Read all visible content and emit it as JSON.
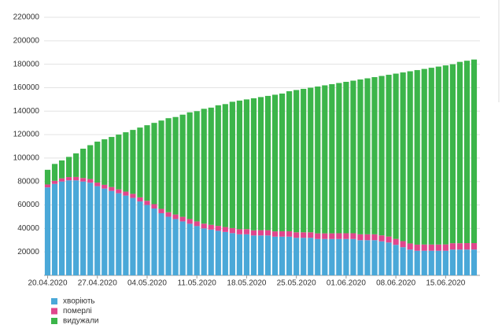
{
  "chart_data": {
    "type": "stacked_bar",
    "categories": [
      "20.04.2020",
      null,
      null,
      null,
      null,
      null,
      null,
      "27.04.2020",
      null,
      null,
      null,
      null,
      null,
      null,
      "04.05.2020",
      null,
      null,
      null,
      null,
      null,
      null,
      "11.05.2020",
      null,
      null,
      null,
      null,
      null,
      null,
      "18.05.2020",
      null,
      null,
      null,
      null,
      null,
      null,
      "25.05.2020",
      null,
      null,
      null,
      null,
      null,
      null,
      "01.06.2020",
      null,
      null,
      null,
      null,
      null,
      null,
      "08.06.2020",
      null,
      null,
      null,
      null,
      null,
      null,
      "15.06.2020",
      null,
      null,
      null,
      null
    ],
    "series": [
      {
        "name": "хворіють",
        "color": "#4aa8d8",
        "values": [
          75000,
          78000,
          80000,
          81000,
          81000,
          80000,
          79000,
          76000,
          74000,
          72000,
          70000,
          68000,
          66000,
          63000,
          60000,
          57000,
          53000,
          50000,
          48000,
          46000,
          44000,
          42000,
          40000,
          39000,
          38000,
          37000,
          36000,
          35000,
          35000,
          34000,
          34000,
          34000,
          33000,
          33000,
          33000,
          32000,
          32000,
          32000,
          31000,
          31000,
          31000,
          31000,
          31000,
          31000,
          30000,
          30000,
          30000,
          29000,
          28000,
          26000,
          24000,
          22000,
          21000,
          21000,
          21000,
          21000,
          21000,
          22000,
          22000,
          22000,
          22000
        ]
      },
      {
        "name": "померлі",
        "color": "#e0468c",
        "values": [
          2500,
          2600,
          2700,
          2800,
          2900,
          3000,
          3100,
          3100,
          3200,
          3300,
          3300,
          3400,
          3500,
          3500,
          3600,
          3700,
          3700,
          3800,
          3900,
          3900,
          4000,
          4000,
          4100,
          4100,
          4200,
          4200,
          4300,
          4300,
          4400,
          4400,
          4500,
          4500,
          4500,
          4600,
          4600,
          4700,
          4700,
          4700,
          4800,
          4800,
          4800,
          4900,
          4900,
          4900,
          5000,
          5000,
          5000,
          5100,
          5100,
          5100,
          5200,
          5200,
          5200,
          5300,
          5300,
          5300,
          5400,
          5400,
          5400,
          5500,
          5500
        ]
      },
      {
        "name": "видужали",
        "color": "#3cb54a",
        "values": [
          12500,
          14400,
          15300,
          17200,
          20100,
          25000,
          28900,
          34900,
          38800,
          42700,
          46700,
          50600,
          54500,
          59500,
          64400,
          69300,
          75300,
          80200,
          83100,
          87100,
          91000,
          94000,
          97900,
          99900,
          102800,
          104800,
          107700,
          109700,
          110600,
          112600,
          113500,
          114500,
          116500,
          117400,
          119400,
          121300,
          122300,
          123300,
          125200,
          126200,
          127200,
          128100,
          129100,
          130100,
          132000,
          133000,
          134000,
          135900,
          137900,
          140900,
          143800,
          146800,
          148800,
          149700,
          150700,
          151700,
          152600,
          152600,
          154600,
          155500,
          156500
        ]
      }
    ],
    "ylim": [
      0,
      220000
    ],
    "yticks": [
      20000,
      40000,
      60000,
      80000,
      100000,
      120000,
      140000,
      160000,
      180000,
      200000,
      220000
    ],
    "grid": true
  }
}
